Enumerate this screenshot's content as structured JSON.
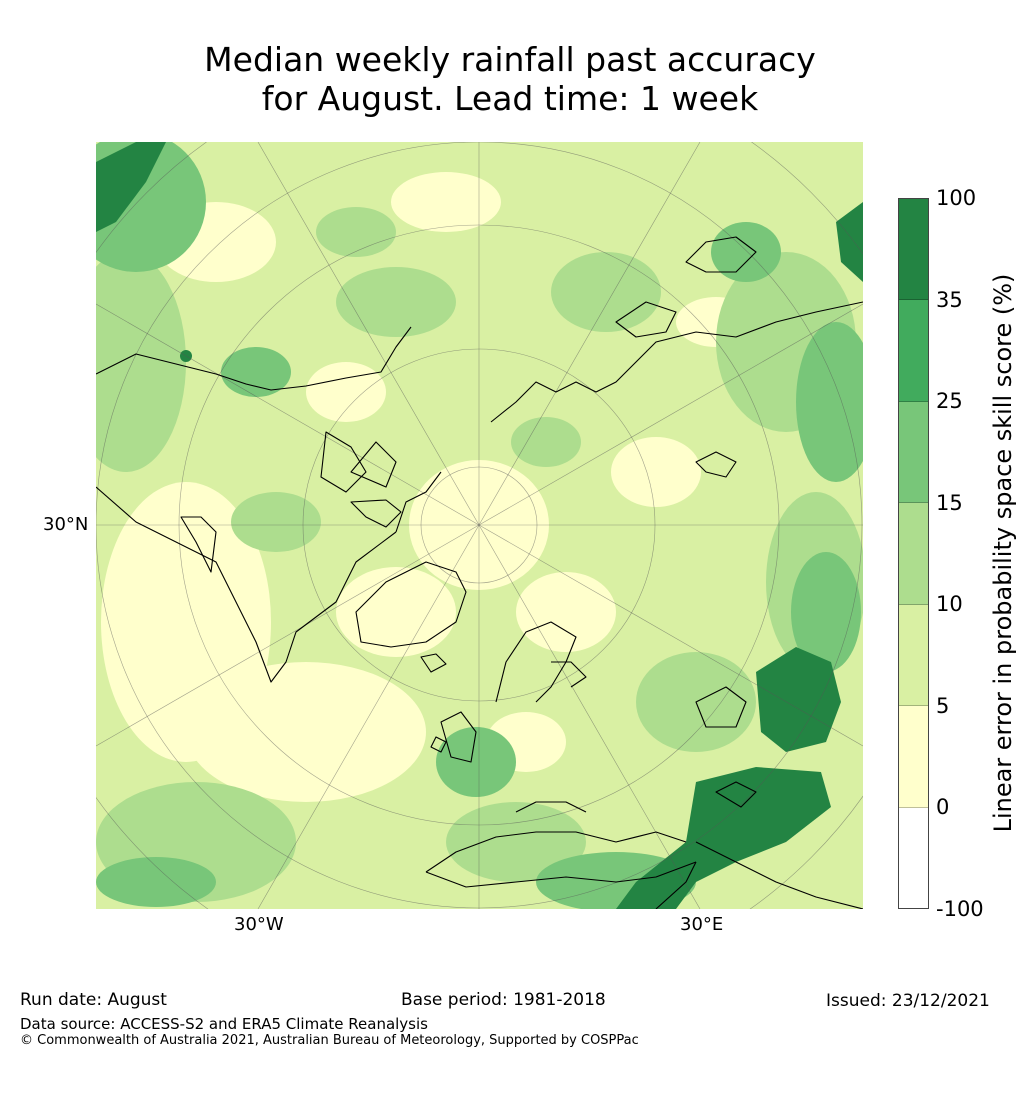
{
  "title": {
    "line1": "Median weekly rainfall past accuracy",
    "line2": "for August. Lead time: 1 week"
  },
  "map": {
    "projection": "north-polar-stereographic",
    "base_fill": "#dcefa8",
    "coastline_color": "#000000"
  },
  "axes": {
    "left_label": "30°N",
    "bottom_labels": [
      "30°W",
      "30°E"
    ]
  },
  "colorbar": {
    "label": "Linear error in probability space skill score (%)",
    "ticks": [
      "100",
      "35",
      "25",
      "15",
      "10",
      "5",
      "0",
      "-100"
    ],
    "colors_top_to_bottom": [
      "#238443",
      "#41ab5d",
      "#78c679",
      "#addd8e",
      "#d9f0a3",
      "#ffffcc",
      "#ffffff"
    ]
  },
  "footer": {
    "run_date": "Run date: August",
    "base_period": "Base period: 1981-2018",
    "issued": "Issued: 23/12/2021",
    "data_source": "Data source: ACCESS-S2 and ERA5 Climate Reanalysis",
    "copyright": "© Commonwealth of Australia 2021, Australian Bureau of Meteorology, Supported by COSPPac"
  }
}
